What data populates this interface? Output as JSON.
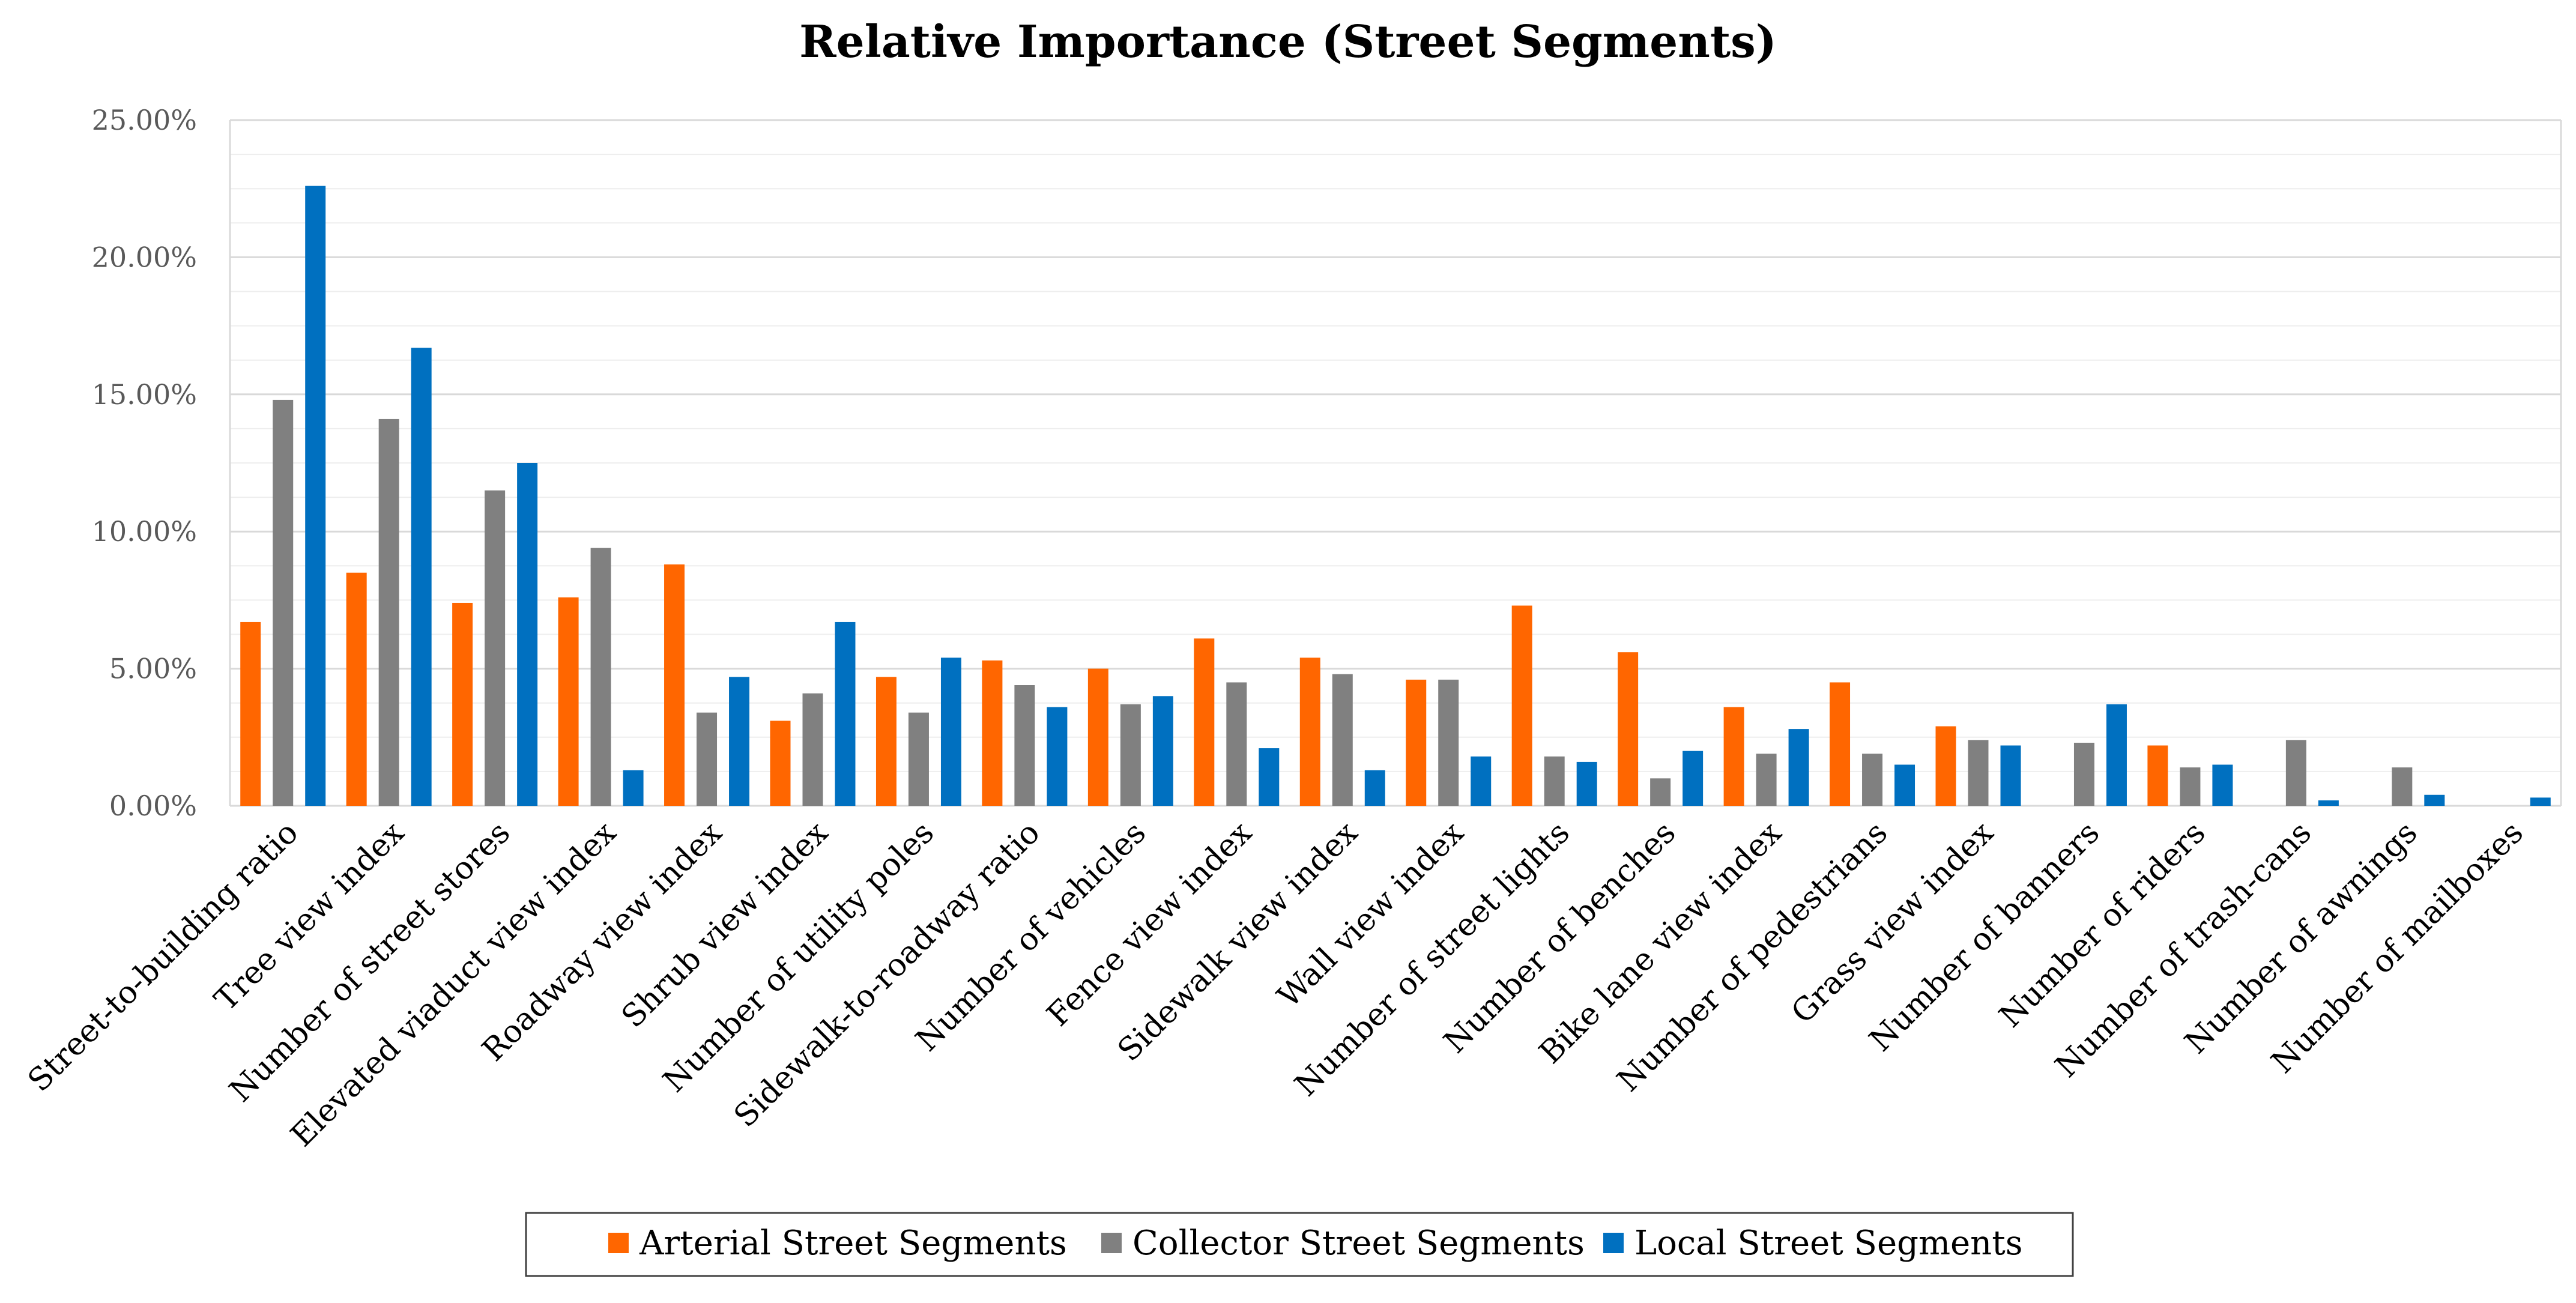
{
  "chart_data": {
    "type": "bar",
    "title": "Relative Importance (Street Segments)",
    "xlabel": "",
    "ylabel": "",
    "ylim": [
      0,
      25
    ],
    "y_ticks": [
      "0.00%",
      "5.00%",
      "10.00%",
      "15.00%",
      "20.00%",
      "25.00%"
    ],
    "grid": "major and minor horizontal",
    "legend_position": "bottom-center",
    "categories": [
      "Street-to-building ratio",
      "Tree view index",
      "Number of street stores",
      "Elevated viaduct view index",
      "Roadway view index",
      "Shrub view index",
      "Number of utility poles",
      "Sidewalk-to-roadway ratio",
      "Number of vehicles",
      "Fence view index",
      "Sidewalk view index",
      "Wall view index",
      "Number of street lights",
      "Number of benches",
      "Bike lane view index",
      "Number of pedestrians",
      "Grass view index",
      "Number of banners",
      "Number of riders",
      "Number of trash-cans",
      "Number of awnings",
      "Number of mailboxes"
    ],
    "series": [
      {
        "name": "Arterial Street Segments",
        "color": "#FF6600",
        "values": [
          6.7,
          8.5,
          7.4,
          7.6,
          8.8,
          3.1,
          4.7,
          5.3,
          5.0,
          6.1,
          5.4,
          4.6,
          7.3,
          5.6,
          3.6,
          4.5,
          2.9,
          0,
          2.2,
          0,
          0,
          0
        ]
      },
      {
        "name": "Collector Street Segments",
        "color": "#808080",
        "values": [
          14.8,
          14.1,
          11.5,
          9.4,
          3.4,
          4.1,
          3.4,
          4.4,
          3.7,
          4.5,
          4.8,
          4.6,
          1.8,
          1.0,
          1.9,
          1.9,
          2.4,
          2.3,
          1.4,
          2.4,
          1.4,
          0
        ]
      },
      {
        "name": "Local Street Segments",
        "color": "#0070C0",
        "values": [
          22.6,
          16.7,
          12.5,
          1.3,
          4.7,
          6.7,
          5.4,
          3.6,
          4.0,
          2.1,
          1.3,
          1.8,
          1.6,
          2.0,
          2.8,
          1.5,
          2.2,
          3.7,
          1.5,
          0.2,
          0.4,
          0.3
        ]
      }
    ]
  }
}
